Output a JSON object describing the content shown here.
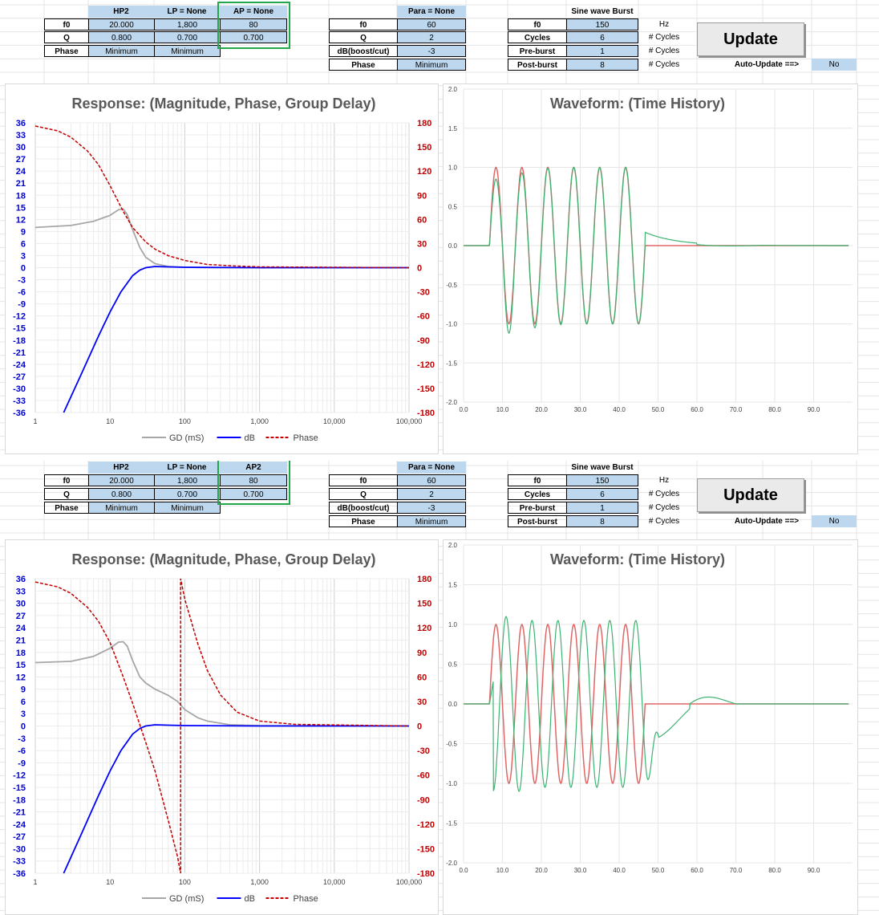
{
  "colors": {
    "header_fill": "#bdd7ee",
    "gd": "#a6a6a6",
    "db": "#0000ff",
    "phase": "#c00000",
    "wave_input": "#e06666",
    "wave_output": "#3cb371",
    "highlight": "#22a84a",
    "axis_left": "#0000cc",
    "axis_right": "#c00000"
  },
  "panels": [
    {
      "params": {
        "hp2_header": "HP2",
        "lp_header": "LP = None",
        "ap_header": "AP = None",
        "f0_label": "f0",
        "q_label": "Q",
        "phase_label": "Phase",
        "hp2_f0": "20.000",
        "lp_f0": "1,800",
        "ap_f0": "80",
        "hp2_q": "0.800",
        "lp_q": "0.700",
        "ap_q": "0.700",
        "hp2_phase": "Minimum",
        "lp_phase": "Minimum",
        "para_header": "Para = None",
        "para_f0_label": "f0",
        "para_q_label": "Q",
        "para_db_label": "dB(boost/cut)",
        "para_phase_label": "Phase",
        "para_f0": "60",
        "para_q": "2",
        "para_db": "-3",
        "para_phase": "Minimum",
        "burst_header": "Sine wave Burst",
        "burst_f0_label": "f0",
        "burst_cycles_label": "Cycles",
        "burst_pre_label": "Pre-burst",
        "burst_post_label": "Post-burst",
        "burst_f0": "150",
        "burst_cycles": "6",
        "burst_pre": "1",
        "burst_post": "8",
        "unit_hz": "Hz",
        "unit_cycles1": "# Cycles",
        "unit_cycles2": "# Cycles",
        "unit_cycles3": "# Cycles",
        "update_label": "Update",
        "autoupdate_label": "Auto-Update ==>",
        "autoupdate_value": "No"
      },
      "chart_data": [
        {
          "type": "line",
          "title": "Response: (Magnitude, Phase, Group Delay)",
          "x_scale": "log",
          "xlim": [
            1,
            100000
          ],
          "x_ticks": [
            "1",
            "10",
            "100",
            "1,000",
            "10,000",
            "100,000"
          ],
          "y_left_ticks": [
            "36",
            "33",
            "30",
            "27",
            "24",
            "21",
            "18",
            "15",
            "12",
            "9",
            "6",
            "3",
            "0",
            "-3",
            "-6",
            "-9",
            "-12",
            "-15",
            "-18",
            "-21",
            "-24",
            "-27",
            "-30",
            "-33",
            "-36"
          ],
          "y_right_ticks": [
            "180",
            "150",
            "120",
            "90",
            "60",
            "30",
            "0",
            "-30",
            "-60",
            "-90",
            "-120",
            "-150",
            "-180"
          ],
          "ylim_left": [
            -36,
            36
          ],
          "ylim_right": [
            -180,
            180
          ],
          "legend": [
            "GD (mS)",
            "dB",
            "Phase"
          ],
          "legend_position": "bottom",
          "series": [
            {
              "name": "GD (mS)",
              "axis": "left",
              "x": [
                1,
                3,
                6,
                10,
                13,
                15,
                17,
                20,
                25,
                30,
                40,
                60,
                100,
                200,
                500,
                100000
              ],
              "y": [
                10,
                10.5,
                11.5,
                13,
                14.4,
                14.6,
                13.2,
                9.5,
                5,
                2.6,
                1,
                0.3,
                0.1,
                0,
                0,
                0
              ]
            },
            {
              "name": "dB",
              "axis": "left",
              "x": [
                2.4,
                4,
                7,
                10,
                14,
                20,
                25,
                30,
                40,
                60,
                100,
                1000,
                100000
              ],
              "y": [
                -36,
                -27,
                -17,
                -11,
                -6,
                -2,
                -0.6,
                0,
                0.3,
                0.2,
                0.1,
                0,
                0
              ]
            },
            {
              "name": "Phase",
              "axis": "right",
              "x": [
                1,
                2,
                3,
                5,
                7,
                10,
                15,
                20,
                30,
                40,
                60,
                100,
                200,
                500,
                1000,
                100000
              ],
              "y": [
                176,
                170,
                162,
                145,
                128,
                102,
                70,
                50,
                32,
                23,
                15,
                9,
                4,
                2,
                1,
                0
              ]
            }
          ]
        },
        {
          "type": "line",
          "title": "Waveform: (Time History)",
          "xlim": [
            0,
            100
          ],
          "ylim": [
            -2,
            2
          ],
          "x_ticks": [
            "0.0",
            "10.0",
            "20.0",
            "30.0",
            "40.0",
            "50.0",
            "60.0",
            "70.0",
            "80.0",
            "90.0"
          ],
          "y_ticks": [
            "2.0",
            "1.5",
            "1.0",
            "0.5",
            "0.0",
            "-0.5",
            "-1.0",
            "-1.5",
            "-2.0"
          ],
          "burst": {
            "start_ms": 6.667,
            "frequency_hz": 150,
            "cycles": 6
          },
          "series": [
            {
              "name": "Input burst",
              "amplitude": 1.0
            },
            {
              "name": "Output",
              "peaks": [
                0.85,
                0.93,
                0.99,
                1.0,
                1.0,
                1.0
              ],
              "troughs": [
                -1.12,
                -1.05,
                -1.01,
                -1.0,
                -1.0,
                -1.0
              ],
              "tail_peak": 0.17,
              "tail_decay_ms": 8
            }
          ]
        }
      ]
    },
    {
      "params": {
        "hp2_header": "HP2",
        "lp_header": "LP = None",
        "ap_header": "AP2",
        "f0_label": "f0",
        "q_label": "Q",
        "phase_label": "Phase",
        "hp2_f0": "20.000",
        "lp_f0": "1,800",
        "ap_f0": "80",
        "hp2_q": "0.800",
        "lp_q": "0.700",
        "ap_q": "0.700",
        "hp2_phase": "Minimum",
        "lp_phase": "Minimum",
        "para_header": "Para = None",
        "para_f0_label": "f0",
        "para_q_label": "Q",
        "para_db_label": "dB(boost/cut)",
        "para_phase_label": "Phase",
        "para_f0": "60",
        "para_q": "2",
        "para_db": "-3",
        "para_phase": "Minimum",
        "burst_header": "Sine wave Burst",
        "burst_f0_label": "f0",
        "burst_cycles_label": "Cycles",
        "burst_pre_label": "Pre-burst",
        "burst_post_label": "Post-burst",
        "burst_f0": "150",
        "burst_cycles": "6",
        "burst_pre": "1",
        "burst_post": "8",
        "unit_hz": "Hz",
        "unit_cycles1": "# Cycles",
        "unit_cycles2": "# Cycles",
        "unit_cycles3": "# Cycles",
        "update_label": "Update",
        "autoupdate_label": "Auto-Update ==>",
        "autoupdate_value": "No"
      },
      "chart_data": [
        {
          "type": "line",
          "title": "Response: (Magnitude, Phase, Group Delay)",
          "x_scale": "log",
          "xlim": [
            1,
            100000
          ],
          "x_ticks": [
            "1",
            "10",
            "100",
            "1,000",
            "10,000",
            "100,000"
          ],
          "y_left_ticks": [
            "36",
            "33",
            "30",
            "27",
            "24",
            "21",
            "18",
            "15",
            "12",
            "9",
            "6",
            "3",
            "0",
            "-3",
            "-6",
            "-9",
            "-12",
            "-15",
            "-18",
            "-21",
            "-24",
            "-27",
            "-30",
            "-33",
            "-36"
          ],
          "y_right_ticks": [
            "180",
            "150",
            "120",
            "90",
            "60",
            "30",
            "0",
            "-30",
            "-60",
            "-90",
            "-120",
            "-150",
            "-180"
          ],
          "ylim_left": [
            -36,
            36
          ],
          "ylim_right": [
            -180,
            180
          ],
          "legend": [
            "GD (mS)",
            "dB",
            "Phase"
          ],
          "legend_position": "bottom",
          "series": [
            {
              "name": "GD (mS)",
              "axis": "left",
              "x": [
                1,
                3,
                6,
                10,
                13,
                15,
                17,
                20,
                25,
                30,
                40,
                60,
                80,
                100,
                150,
                200,
                400,
                1000,
                100000
              ],
              "y": [
                15.5,
                15.8,
                17,
                19,
                20.5,
                20.6,
                19.5,
                16,
                12,
                10.5,
                9,
                7.5,
                6,
                4,
                2,
                1.2,
                0.3,
                0.1,
                0
              ]
            },
            {
              "name": "dB",
              "axis": "left",
              "x": [
                2.4,
                4,
                7,
                10,
                14,
                20,
                25,
                30,
                40,
                60,
                100,
                1000,
                100000
              ],
              "y": [
                -36,
                -27,
                -17,
                -11,
                -6,
                -2,
                -0.6,
                0,
                0.3,
                0.2,
                0.1,
                0,
                0
              ]
            },
            {
              "name": "Phase",
              "axis": "right",
              "x": [
                1,
                2,
                3,
                5,
                7,
                10,
                15,
                20,
                30,
                40,
                60,
                80,
                88,
                88.01,
                100,
                150,
                200,
                300,
                500,
                1000,
                3000,
                100000
              ],
              "y": [
                176,
                170,
                162,
                145,
                128,
                102,
                60,
                28,
                -20,
                -55,
                -115,
                -160,
                -180,
                180,
                155,
                100,
                68,
                38,
                17,
                6,
                2,
                0
              ]
            }
          ]
        },
        {
          "type": "line",
          "title": "Waveform: (Time History)",
          "xlim": [
            0,
            100
          ],
          "ylim": [
            -2,
            2
          ],
          "x_ticks": [
            "0.0",
            "10.0",
            "20.0",
            "30.0",
            "40.0",
            "50.0",
            "60.0",
            "70.0",
            "80.0",
            "90.0"
          ],
          "y_ticks": [
            "2.0",
            "1.5",
            "1.0",
            "0.5",
            "0.0",
            "-0.5",
            "-1.0",
            "-1.5",
            "-2.0"
          ],
          "burst": {
            "start_ms": 6.667,
            "frequency_hz": 150,
            "cycles": 6
          },
          "series": [
            {
              "name": "Input burst",
              "amplitude": 1.0
            },
            {
              "name": "Output",
              "delay_ms": 2.6,
              "onset_peak": 0.3,
              "amplitude": 1.05,
              "overshoot": 1.1,
              "tail_dip": -0.42,
              "tail_peak": 0.13,
              "tail_end_ms": 70
            }
          ]
        }
      ]
    }
  ]
}
